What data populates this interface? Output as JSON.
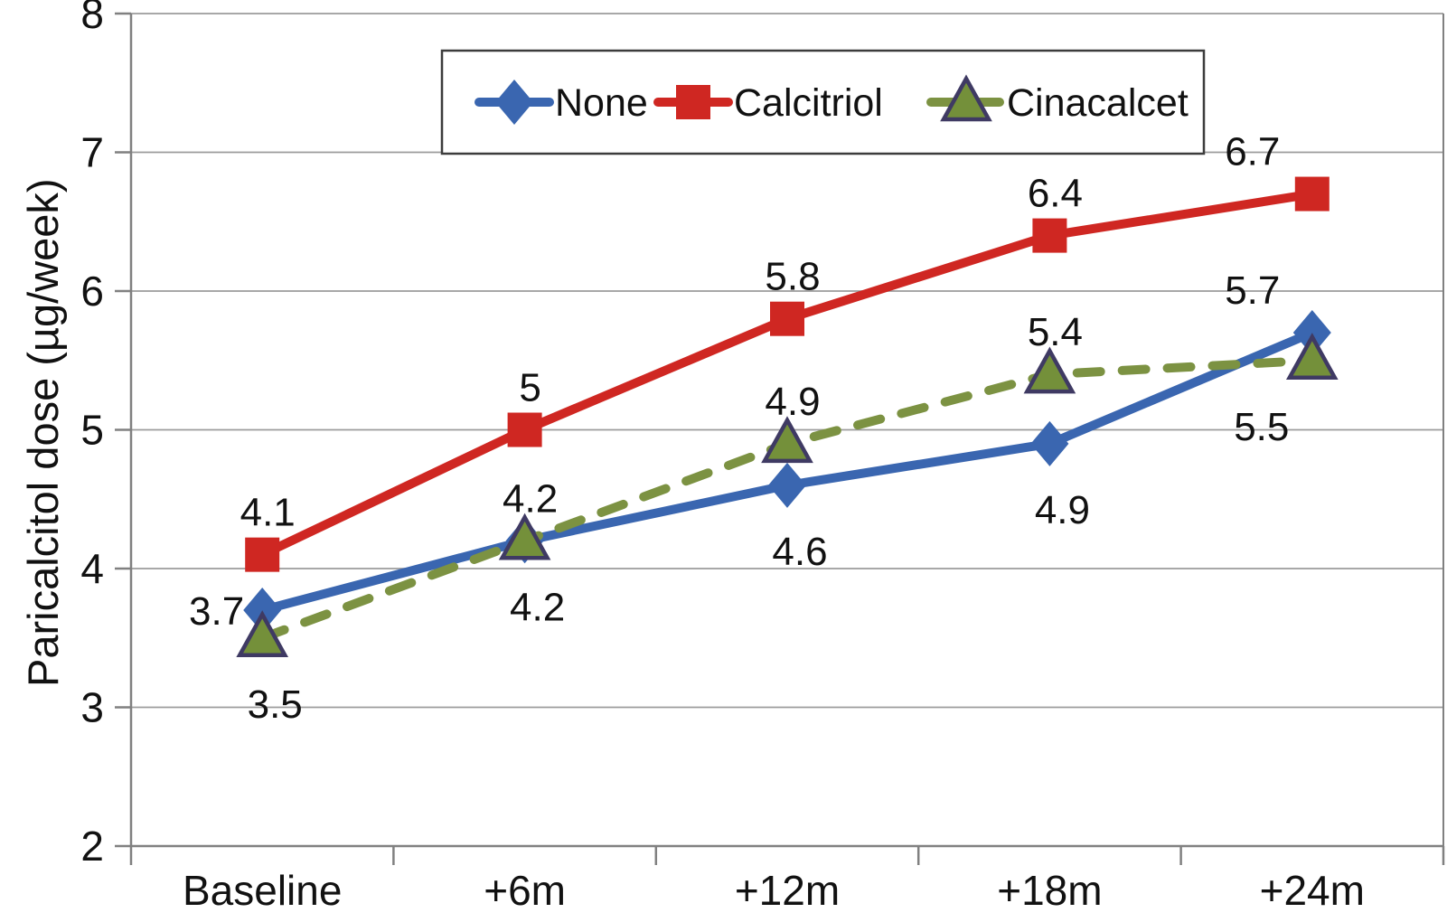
{
  "figure": {
    "background": "#ffffff",
    "text_color": "#111111",
    "grid_color": "#9c9c9c",
    "axis_color": "#808080",
    "legend_border_color": "#3c3c3c"
  },
  "chart_data": {
    "type": "line",
    "title": "",
    "xlabel": "",
    "ylabel": "Paricalcitol dose (µg/week)",
    "categories": [
      "Baseline",
      "+6m",
      "+12m",
      "+18m",
      "+24m"
    ],
    "ylim": [
      2,
      8
    ],
    "yticks": [
      2,
      3,
      4,
      5,
      6,
      7,
      8
    ],
    "ytick_labels": [
      "2",
      "3",
      "4",
      "5",
      "6",
      "7",
      "8"
    ],
    "grid": "horizontal",
    "legend_position": "top-center-inside",
    "legend_entries": [
      "None",
      "Calcitriol",
      "Cinacalcet"
    ],
    "series": [
      {
        "name": "None",
        "color": "#3A66B0",
        "marker": "diamond",
        "marker_fill": "#3A66B0",
        "marker_stroke": "none",
        "line_style": "solid",
        "values": [
          3.7,
          4.2,
          4.6,
          4.9,
          5.7
        ],
        "data_labels": [
          "3.7",
          "4.2",
          "4.6",
          "4.9",
          "5.7"
        ],
        "label_positions": [
          "left",
          "above",
          "below",
          "below",
          "above"
        ]
      },
      {
        "name": "Calcitriol",
        "color": "#CF2722",
        "marker": "square",
        "marker_fill": "#CF2722",
        "marker_stroke": "none",
        "line_style": "solid",
        "values": [
          4.1,
          5,
          5.8,
          6.4,
          6.7
        ],
        "data_labels": [
          "4.1",
          "5",
          "5.8",
          "6.4",
          "6.7"
        ],
        "label_positions": [
          "above",
          "above",
          "above",
          "above",
          "above"
        ]
      },
      {
        "name": "Cinacalcet",
        "color": "#7C9242",
        "marker": "triangle",
        "marker_fill": "#74903A",
        "marker_stroke": "#3F3A63",
        "line_style": "dashed",
        "values": [
          3.5,
          4.2,
          4.9,
          5.4,
          5.5
        ],
        "data_labels": [
          "3.5",
          "4.2",
          "4.9",
          "5.4",
          "5.5"
        ],
        "label_positions": [
          "below",
          "below",
          "above",
          "above",
          "below"
        ]
      }
    ]
  }
}
